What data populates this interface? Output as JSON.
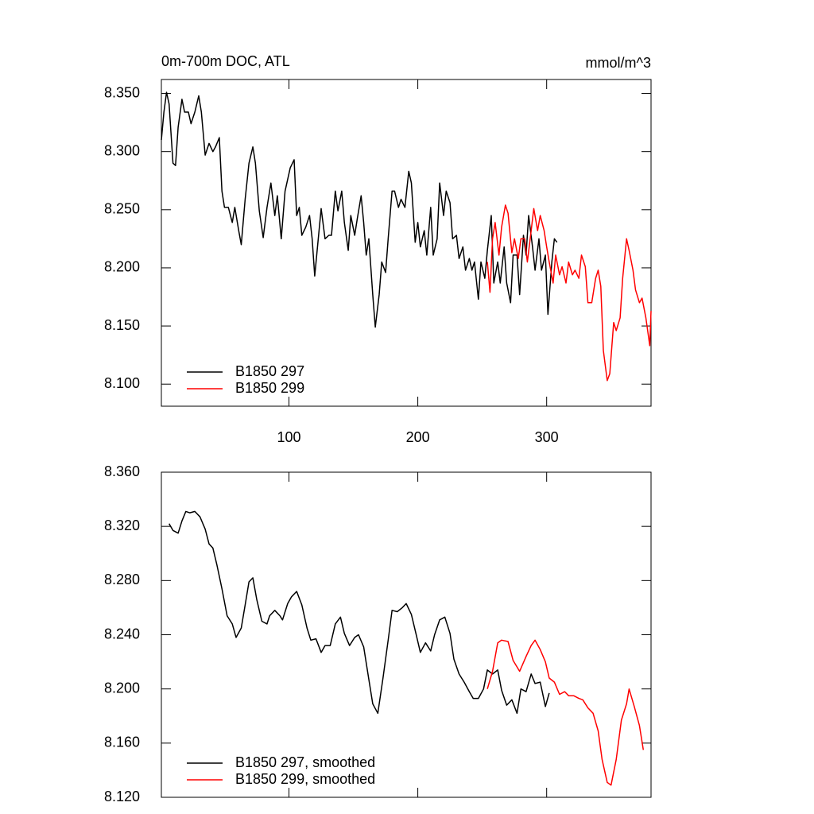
{
  "chart_data": [
    {
      "type": "line",
      "title": "0m-700m DOC, ATL",
      "right_title": "mmol/m^3",
      "xlim": [
        1,
        381
      ],
      "xticks": [
        100,
        200,
        300
      ],
      "xtick_labels": true,
      "ylim": [
        8.081,
        8.362
      ],
      "yticks": [
        {
          "value": 8.35,
          "label": "8.350"
        },
        {
          "value": 8.3,
          "label": "8.300"
        },
        {
          "value": 8.25,
          "label": "8.250"
        },
        {
          "value": 8.2,
          "label": "8.200"
        },
        {
          "value": 8.15,
          "label": "8.150"
        },
        {
          "value": 8.1,
          "label": "8.100"
        }
      ],
      "legend": "lower left",
      "series": [
        {
          "name": "B1850 297",
          "color": "#000000",
          "x": [
            1,
            3,
            5,
            7,
            10,
            12,
            14,
            17,
            19,
            22,
            24,
            27,
            30,
            32,
            35,
            38,
            41,
            43,
            46,
            48,
            50,
            53,
            56,
            58,
            61,
            63,
            66,
            69,
            72,
            74,
            77,
            80,
            83,
            86,
            89,
            91,
            94,
            97,
            101,
            104,
            106,
            108,
            110,
            113,
            116,
            118,
            120,
            123,
            125,
            128,
            131,
            133,
            136,
            138,
            141,
            143,
            146,
            148,
            151,
            153,
            156,
            158,
            160,
            162,
            165,
            167,
            170,
            172,
            175,
            177,
            180,
            182,
            185,
            187,
            190,
            193,
            195,
            198,
            200,
            202,
            205,
            207,
            210,
            212,
            215,
            217,
            220,
            222,
            225,
            227,
            230,
            232,
            235,
            237,
            240,
            242,
            244,
            247,
            249,
            252,
            254,
            257,
            259,
            262,
            264,
            267,
            269,
            272,
            274,
            277,
            279,
            282,
            284,
            286,
            289,
            291,
            294,
            296,
            299,
            301,
            304,
            306,
            308
          ],
          "values": [
            8.31,
            8.334,
            8.351,
            8.341,
            8.29,
            8.288,
            8.321,
            8.345,
            8.334,
            8.334,
            8.324,
            8.334,
            8.348,
            8.334,
            8.297,
            8.307,
            8.3,
            8.304,
            8.312,
            8.266,
            8.252,
            8.252,
            8.239,
            8.252,
            8.232,
            8.22,
            8.259,
            8.29,
            8.304,
            8.29,
            8.249,
            8.226,
            8.252,
            8.273,
            8.245,
            8.262,
            8.225,
            8.266,
            8.286,
            8.293,
            8.245,
            8.252,
            8.228,
            8.235,
            8.245,
            8.225,
            8.193,
            8.228,
            8.251,
            8.225,
            8.228,
            8.228,
            8.266,
            8.249,
            8.266,
            8.239,
            8.215,
            8.245,
            8.228,
            8.242,
            8.262,
            8.239,
            8.211,
            8.225,
            8.177,
            8.149,
            8.177,
            8.205,
            8.196,
            8.225,
            8.266,
            8.266,
            8.252,
            8.259,
            8.252,
            8.283,
            8.273,
            8.222,
            8.239,
            8.218,
            8.232,
            8.211,
            8.252,
            8.211,
            8.225,
            8.273,
            8.245,
            8.266,
            8.256,
            8.225,
            8.228,
            8.208,
            8.218,
            8.198,
            8.208,
            8.198,
            8.205,
            8.173,
            8.205,
            8.191,
            8.215,
            8.245,
            8.187,
            8.205,
            8.187,
            8.218,
            8.187,
            8.17,
            8.211,
            8.211,
            8.177,
            8.228,
            8.211,
            8.245,
            8.218,
            8.198,
            8.225,
            8.198,
            8.211,
            8.16,
            8.205,
            8.225,
            8.222
          ]
        },
        {
          "name": "B1850 299",
          "color": "#ff0000",
          "x": [
            254,
            256,
            258,
            260,
            263,
            265,
            268,
            270,
            273,
            275,
            278,
            280,
            283,
            285,
            288,
            290,
            293,
            295,
            298,
            300,
            302,
            305,
            307,
            310,
            312,
            315,
            317,
            320,
            322,
            325,
            327,
            330,
            332,
            335,
            338,
            340,
            342,
            344,
            347,
            349,
            352,
            354,
            357,
            359,
            362,
            364,
            367,
            369,
            372,
            374,
            377,
            380,
            381
          ],
          "values": [
            8.205,
            8.179,
            8.225,
            8.239,
            8.211,
            8.235,
            8.254,
            8.247,
            8.213,
            8.225,
            8.208,
            8.225,
            8.225,
            8.205,
            8.232,
            8.251,
            8.232,
            8.245,
            8.232,
            8.218,
            8.205,
            8.187,
            8.211,
            8.194,
            8.201,
            8.187,
            8.205,
            8.194,
            8.198,
            8.191,
            8.211,
            8.201,
            8.17,
            8.17,
            8.191,
            8.198,
            8.184,
            8.129,
            8.103,
            8.109,
            8.153,
            8.146,
            8.157,
            8.191,
            8.225,
            8.215,
            8.198,
            8.181,
            8.17,
            8.174,
            8.157,
            8.133,
            8.163
          ]
        }
      ]
    },
    {
      "type": "line",
      "xlim": [
        1,
        381
      ],
      "xticks": [
        100,
        200,
        300
      ],
      "xtick_labels": false,
      "ylim": [
        8.12,
        8.36
      ],
      "yticks": [
        {
          "value": 8.36,
          "label": "8.360"
        },
        {
          "value": 8.32,
          "label": "8.320"
        },
        {
          "value": 8.28,
          "label": "8.280"
        },
        {
          "value": 8.24,
          "label": "8.240"
        },
        {
          "value": 8.2,
          "label": "8.200"
        },
        {
          "value": 8.16,
          "label": "8.160"
        },
        {
          "value": 8.12,
          "label": "8.120"
        }
      ],
      "legend": "lower left",
      "series": [
        {
          "name": "B1850 297, smoothed",
          "color": "#000000",
          "x": [
            7,
            10,
            14,
            17,
            20,
            23,
            27,
            31,
            35,
            38,
            41,
            44,
            48,
            52,
            56,
            59,
            63,
            66,
            69,
            72,
            75,
            79,
            83,
            85,
            89,
            93,
            95,
            99,
            102,
            106,
            110,
            114,
            117,
            121,
            125,
            128,
            132,
            136,
            140,
            143,
            147,
            151,
            154,
            158,
            162,
            165,
            169,
            173,
            177,
            180,
            184,
            188,
            191,
            195,
            199,
            202,
            206,
            210,
            213,
            217,
            221,
            225,
            228,
            232,
            236,
            240,
            243,
            247,
            251,
            254,
            258,
            262,
            265,
            269,
            273,
            277,
            280,
            284,
            288,
            291,
            295,
            299,
            302
          ],
          "values": [
            8.322,
            8.317,
            8.315,
            8.324,
            8.331,
            8.33,
            8.331,
            8.327,
            8.318,
            8.307,
            8.304,
            8.292,
            8.274,
            8.254,
            8.248,
            8.238,
            8.245,
            8.262,
            8.279,
            8.282,
            8.266,
            8.25,
            8.248,
            8.254,
            8.258,
            8.254,
            8.251,
            8.263,
            8.268,
            8.272,
            8.262,
            8.245,
            8.236,
            8.237,
            8.227,
            8.232,
            8.232,
            8.248,
            8.253,
            8.241,
            8.232,
            8.238,
            8.24,
            8.231,
            8.207,
            8.189,
            8.182,
            8.208,
            8.236,
            8.258,
            8.257,
            8.26,
            8.263,
            8.255,
            8.239,
            8.227,
            8.234,
            8.228,
            8.24,
            8.251,
            8.253,
            8.241,
            8.222,
            8.211,
            8.205,
            8.198,
            8.193,
            8.193,
            8.2,
            8.214,
            8.211,
            8.214,
            8.199,
            8.188,
            8.192,
            8.182,
            8.2,
            8.198,
            8.211,
            8.204,
            8.205,
            8.187,
            8.197
          ]
        },
        {
          "name": "B1850 299, smoothed",
          "color": "#ff0000",
          "x": [
            254,
            258,
            262,
            265,
            270,
            274,
            279,
            284,
            288,
            291,
            295,
            299,
            302,
            306,
            310,
            314,
            317,
            321,
            325,
            328,
            332,
            336,
            340,
            343,
            347,
            350,
            354,
            358,
            362,
            364,
            368,
            372,
            375
          ],
          "values": [
            8.2,
            8.213,
            8.234,
            8.236,
            8.235,
            8.221,
            8.213,
            8.224,
            8.232,
            8.236,
            8.229,
            8.22,
            8.208,
            8.205,
            8.196,
            8.198,
            8.195,
            8.195,
            8.193,
            8.192,
            8.186,
            8.182,
            8.169,
            8.148,
            8.131,
            8.129,
            8.148,
            8.177,
            8.189,
            8.2,
            8.187,
            8.173,
            8.155
          ]
        }
      ]
    }
  ]
}
